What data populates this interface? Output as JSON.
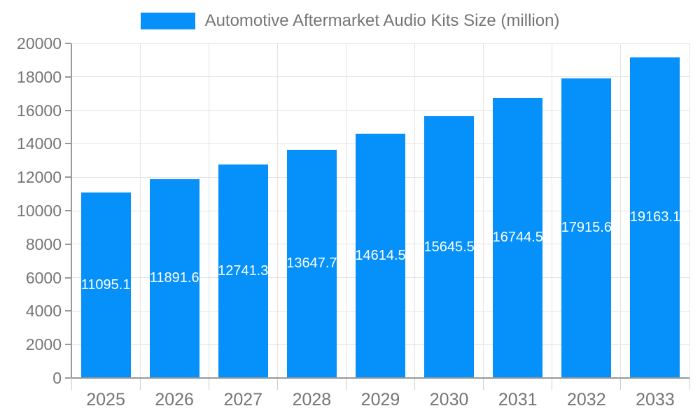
{
  "chart_data": {
    "type": "bar",
    "title": "Automotive Aftermarket Audio Kits Size (million)",
    "legend": [
      "Automotive Aftermarket Audio Kits Size (million)"
    ],
    "legend_position": "top",
    "categories": [
      "2025",
      "2026",
      "2027",
      "2028",
      "2029",
      "2030",
      "2031",
      "2032",
      "2033"
    ],
    "values": [
      11095.1,
      11891.6,
      12741.3,
      13647.7,
      14614.5,
      15645.5,
      16744.5,
      17915.6,
      19163.1
    ],
    "value_labels": [
      "11095.1",
      "11891.6",
      "12741.3",
      "13647.7",
      "14614.5",
      "15645.5",
      "16744.5",
      "17915.6",
      "19163.1"
    ],
    "xlabel": "",
    "ylabel": "",
    "ylim": [
      0,
      20000
    ],
    "ytick_step": 2000,
    "grid": true,
    "colors": {
      "bar": "#0590fa",
      "label_text": "#ffffff",
      "axis": "#999999",
      "gridline": "#e3e3e3",
      "tick": "#cccccc",
      "text": "#757575"
    }
  }
}
